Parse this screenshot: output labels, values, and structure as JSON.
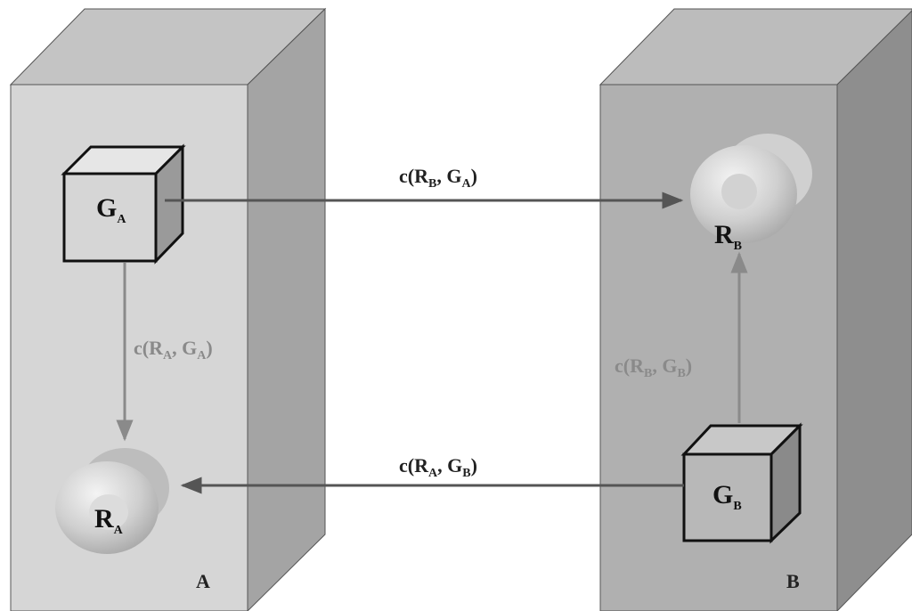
{
  "boxes": [
    {
      "label": "A"
    },
    {
      "label": "B"
    }
  ],
  "nodes": [
    {
      "label": "G",
      "sub": "A"
    },
    {
      "label": "R",
      "sub": "A"
    },
    {
      "label": "G",
      "sub": "B"
    },
    {
      "label": "R",
      "sub": "B"
    }
  ],
  "edges": [
    {
      "text": [
        "c(R",
        ", G",
        ")"
      ],
      "subs": [
        "B",
        "A"
      ]
    },
    {
      "text": [
        "c(R",
        ", G",
        ")"
      ],
      "subs": [
        "A",
        "A"
      ]
    },
    {
      "text": [
        "c(R",
        ", G",
        ")"
      ],
      "subs": [
        "B",
        "B"
      ]
    },
    {
      "text": [
        "c(R",
        ", G",
        ")"
      ],
      "subs": [
        "A",
        "B"
      ]
    }
  ]
}
